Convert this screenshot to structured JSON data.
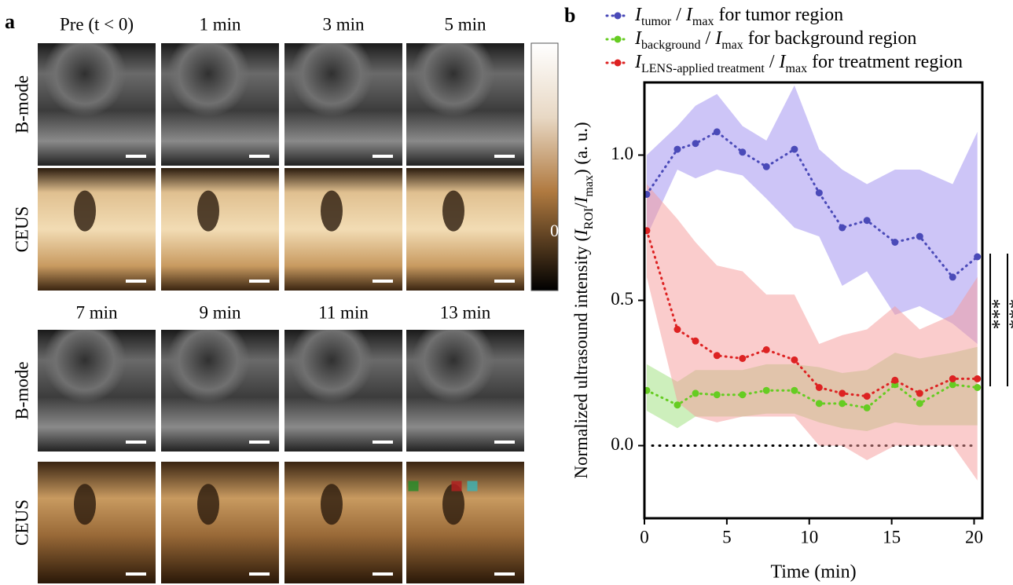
{
  "panel_a": {
    "label": "a",
    "time_labels": [
      "Pre (t < 0)",
      "1 min",
      "3 min",
      "5 min",
      "7 min",
      "9 min",
      "11 min",
      "13 min"
    ],
    "row_labels": [
      "B-mode",
      "CEUS"
    ],
    "colorbar_label": "0"
  },
  "chart_data": {
    "type": "line",
    "label": "b",
    "xlabel": "Time (min)",
    "ylabel": [
      "Normalized ultrasound intensity (",
      "I",
      "ROI",
      "/",
      "I",
      "max",
      ") (a. u.)"
    ],
    "x": [
      0.14,
      2.0,
      3.1,
      4.4,
      5.95,
      7.4,
      9.1,
      10.6,
      12.0,
      13.5,
      15.2,
      16.7,
      18.7,
      20.2
    ],
    "series": [
      {
        "name": [
          "I",
          "tumor",
          " / ",
          "I",
          "max",
          " for tumor region"
        ],
        "color": "#4a4ab8",
        "band_color": "#9b8cf0",
        "values": [
          0.865,
          1.02,
          1.04,
          1.08,
          1.01,
          0.96,
          1.02,
          0.87,
          0.75,
          0.775,
          0.7,
          0.72,
          0.58,
          0.65
        ],
        "upper": [
          1.0,
          1.1,
          1.17,
          1.21,
          1.1,
          1.05,
          1.24,
          1.02,
          0.95,
          0.9,
          0.95,
          0.95,
          0.9,
          1.08
        ],
        "lower": [
          0.72,
          0.95,
          0.92,
          0.95,
          0.93,
          0.85,
          0.75,
          0.72,
          0.55,
          0.6,
          0.45,
          0.48,
          0.42,
          0.35
        ]
      },
      {
        "name": [
          "I",
          "background",
          " / ",
          "I",
          "max",
          " for background region"
        ],
        "color": "#66cc22",
        "band_color": "#9be07a",
        "values": [
          0.19,
          0.14,
          0.18,
          0.175,
          0.175,
          0.19,
          0.19,
          0.145,
          0.145,
          0.13,
          0.21,
          0.145,
          0.21,
          0.2
        ],
        "upper": [
          0.28,
          0.22,
          0.26,
          0.26,
          0.26,
          0.28,
          0.28,
          0.27,
          0.25,
          0.26,
          0.32,
          0.3,
          0.32,
          0.34
        ],
        "lower": [
          0.12,
          0.06,
          0.1,
          0.1,
          0.1,
          0.11,
          0.11,
          0.08,
          0.06,
          0.05,
          0.08,
          0.07,
          0.07,
          0.07
        ]
      },
      {
        "name": [
          "I",
          "LENS-applied treatment",
          " / ",
          "I",
          "max",
          " for treatment region"
        ],
        "color": "#dd2222",
        "band_color": "#f59a9a",
        "values": [
          0.74,
          0.4,
          0.36,
          0.31,
          0.3,
          0.33,
          0.295,
          0.2,
          0.18,
          0.17,
          0.225,
          0.18,
          0.23,
          0.23
        ],
        "upper": [
          0.9,
          0.78,
          0.7,
          0.62,
          0.6,
          0.52,
          0.52,
          0.35,
          0.38,
          0.4,
          0.48,
          0.4,
          0.45,
          0.58
        ],
        "lower": [
          0.58,
          0.15,
          0.1,
          0.08,
          0.1,
          0.1,
          0.1,
          0.0,
          0.0,
          -0.05,
          0.0,
          0.0,
          0.0,
          -0.12
        ]
      }
    ],
    "hline": 0,
    "xlim": [
      0,
      20.5
    ],
    "xticks": [
      0,
      5,
      10,
      15,
      20
    ],
    "ylim": [
      -0.25,
      1.25
    ],
    "yticks": [
      {
        "value": 0,
        "label": "0.0"
      },
      {
        "value": 0.5,
        "label": "0.5"
      },
      {
        "value": 1.0,
        "label": "1.0"
      }
    ],
    "annotations": [
      "***",
      "***"
    ]
  }
}
